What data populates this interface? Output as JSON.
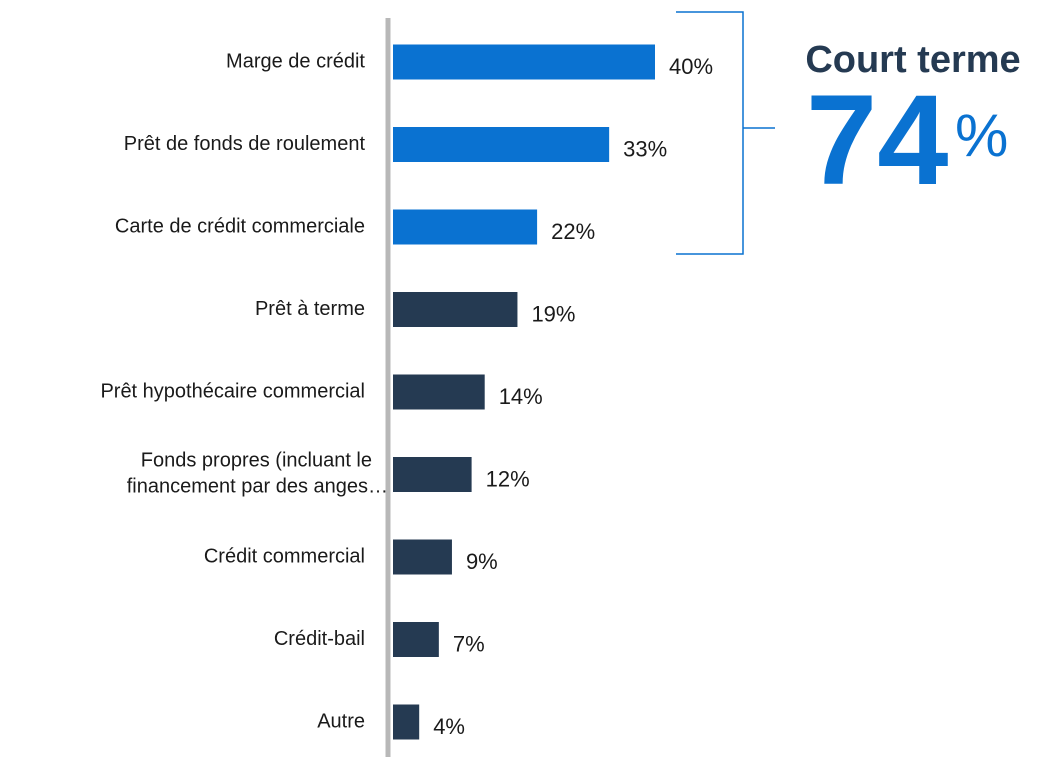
{
  "chart_data": {
    "type": "barh",
    "categories": [
      "Marge de crédit",
      "Prêt de fonds de roulement",
      "Carte de crédit commerciale",
      "Prêt à terme",
      "Prêt hypothécaire commercial",
      "Fonds propres (incluant le financement par des anges…",
      "Crédit commercial",
      "Crédit-bail",
      "Autre"
    ],
    "values": [
      40,
      33,
      22,
      19,
      14,
      12,
      9,
      7,
      4
    ],
    "value_labels": [
      "40%",
      "33%",
      "22%",
      "19%",
      "14%",
      "12%",
      "9%",
      "7%",
      "4%"
    ],
    "colors": [
      "#0a72d1",
      "#0a72d1",
      "#0a72d1",
      "#253a52",
      "#253a52",
      "#253a52",
      "#253a52",
      "#253a52",
      "#253a52"
    ],
    "xlim": [
      0,
      40
    ],
    "annotation": {
      "label": "Court terme",
      "value": "74",
      "suffix": "%",
      "color": "#0a72d1"
    }
  }
}
